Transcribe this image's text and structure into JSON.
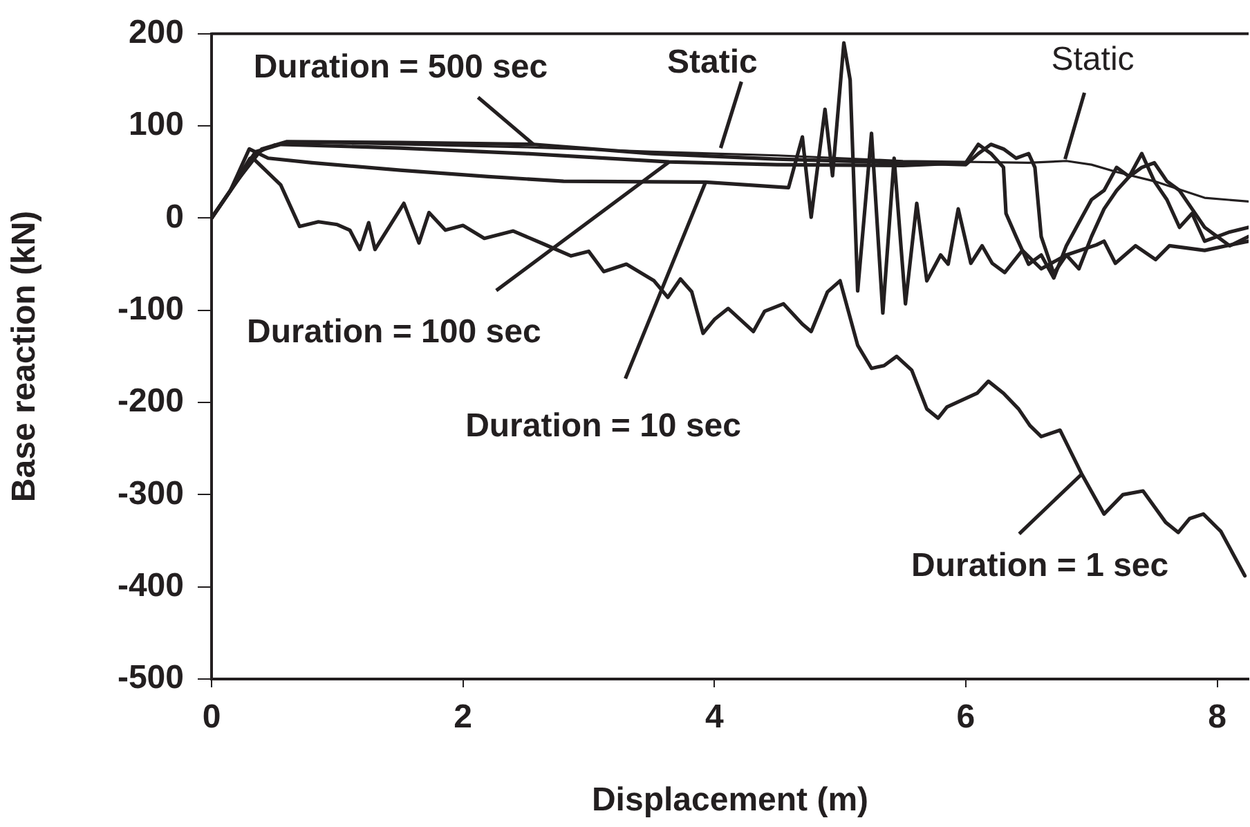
{
  "chart_data": {
    "type": "line",
    "xlabel": "Displacement (m)",
    "ylabel": "Base reaction (kN)",
    "xlim": [
      0,
      8.25
    ],
    "xticks": [
      0,
      2,
      4,
      6,
      8
    ],
    "ylim": [
      -500,
      200
    ],
    "yticks": [
      -500,
      -400,
      -300,
      -200,
      -100,
      0,
      100,
      200
    ],
    "grid": false,
    "legend": false,
    "marker": "none",
    "line_style": "solid",
    "series": [
      {
        "color": "#231f20",
        "x": [
          0,
          0.1,
          0.3,
          0.5,
          0.7,
          1.5,
          2.5,
          3.5,
          4.5,
          5.5,
          6.5,
          6.8,
          7.0,
          7.2,
          7.5,
          7.9,
          8.25
        ],
        "values": [
          0,
          20,
          65,
          80,
          82,
          80,
          77,
          72,
          68,
          62,
          60,
          62,
          58,
          50,
          40,
          22,
          18
        ]
      },
      {
        "color": "#231f20",
        "x": [
          0,
          0.2,
          0.4,
          0.6,
          1.5,
          2.56,
          3.5,
          4.5,
          5.5,
          6.0,
          6.1,
          6.2,
          6.3,
          6.4,
          6.5,
          6.55,
          6.6,
          6.7,
          6.8,
          6.9,
          7.0,
          7.1,
          7.2,
          7.3,
          7.4,
          7.5,
          7.6,
          7.7,
          7.8,
          7.9,
          8.0,
          8.1,
          8.25
        ],
        "values": [
          0,
          40,
          75,
          83,
          82,
          80,
          70,
          64,
          60,
          58,
          70,
          80,
          75,
          65,
          70,
          55,
          -20,
          -60,
          -40,
          -55,
          -20,
          10,
          30,
          45,
          55,
          60,
          40,
          30,
          10,
          -10,
          -20,
          -15,
          -10
        ]
      },
      {
        "color": "#231f20",
        "x": [
          0,
          0.15,
          0.35,
          0.55,
          1.5,
          2.5,
          3.64,
          4.5,
          5.5,
          6.0,
          6.1,
          6.2,
          6.3,
          6.32,
          6.4,
          6.5,
          6.6,
          6.7,
          6.8,
          6.9,
          7.0,
          7.1,
          7.2,
          7.3,
          7.4,
          7.5,
          7.6,
          7.7,
          7.8,
          7.9,
          8.0,
          8.1,
          8.25
        ],
        "values": [
          0,
          30,
          72,
          80,
          76,
          70,
          61,
          58,
          57,
          60,
          80,
          70,
          55,
          5,
          -20,
          -50,
          -40,
          -65,
          -30,
          -5,
          20,
          30,
          55,
          45,
          70,
          40,
          20,
          -10,
          5,
          -25,
          -20,
          -30,
          -20
        ]
      },
      {
        "color": "#231f20",
        "x": [
          0,
          0.15,
          0.3,
          0.45,
          0.8,
          1.5,
          2.2,
          2.8,
          3.93,
          4.59,
          4.7,
          4.77,
          4.88,
          4.94,
          5.03,
          5.08,
          5.14,
          5.25,
          5.34,
          5.43,
          5.52,
          5.61,
          5.69,
          5.8,
          5.86,
          5.94,
          6.04,
          6.13,
          6.21,
          6.31,
          6.45,
          6.6,
          6.8,
          7.04,
          7.1,
          7.19,
          7.35,
          7.51,
          7.62,
          7.9,
          8.25
        ],
        "values": [
          0,
          30,
          75,
          65,
          60,
          52,
          45,
          40,
          39,
          33,
          88,
          1,
          118,
          46,
          190,
          150,
          -79,
          92,
          -103,
          65,
          -93,
          16,
          -68,
          -40,
          -50,
          10,
          -49,
          -30,
          -49,
          -59,
          -35,
          -55,
          -40,
          -29,
          -25,
          -49,
          -30,
          -45,
          -30,
          -35,
          -25
        ]
      },
      {
        "color": "#231f20",
        "x": [
          0,
          0.33,
          0.55,
          0.7,
          0.85,
          1.0,
          1.1,
          1.18,
          1.25,
          1.3,
          1.53,
          1.65,
          1.73,
          1.86,
          2.0,
          2.17,
          2.4,
          2.64,
          2.86,
          3.0,
          3.12,
          3.3,
          3.52,
          3.63,
          3.73,
          3.82,
          3.91,
          4.0,
          4.11,
          4.31,
          4.4,
          4.55,
          4.7,
          4.77,
          4.9,
          5.0,
          5.14,
          5.25,
          5.35,
          5.45,
          5.57,
          5.69,
          5.78,
          5.85,
          6.09,
          6.18,
          6.3,
          6.42,
          6.51,
          6.6,
          6.75,
          6.92,
          7.1,
          7.25,
          7.41,
          7.59,
          7.69,
          7.78,
          7.89,
          8.03,
          8.22
        ],
        "values": [
          0,
          65,
          36,
          -9,
          -4,
          -7,
          -13,
          -34,
          -5,
          -34,
          16,
          -27,
          6,
          -13,
          -8,
          -22,
          -14,
          -28,
          -41,
          -36,
          -58,
          -50,
          -68,
          -86,
          -66,
          -80,
          -125,
          -110,
          -98,
          -123,
          -101,
          -93,
          -115,
          -123,
          -80,
          -68,
          -138,
          -163,
          -160,
          -150,
          -165,
          -207,
          -217,
          -205,
          -190,
          -177,
          -190,
          -207,
          -225,
          -237,
          -230,
          -277,
          -321,
          -300,
          -296,
          -330,
          -341,
          -326,
          -321,
          -340,
          -388
        ]
      }
    ],
    "annotations": [
      {
        "text": "Duration = 500 sec",
        "x": 2.56,
        "y": 80
      },
      {
        "text": "Duration = 100 sec",
        "x": 3.64,
        "y": 61
      },
      {
        "text": "Duration = 10 sec",
        "x": 3.93,
        "y": 39
      },
      {
        "text": "Static",
        "x": 4.05,
        "y": 76
      },
      {
        "text": "Static",
        "x": 6.79,
        "y": 64
      },
      {
        "text": "Duration = 1 sec",
        "x": 6.92,
        "y": -278
      }
    ]
  }
}
